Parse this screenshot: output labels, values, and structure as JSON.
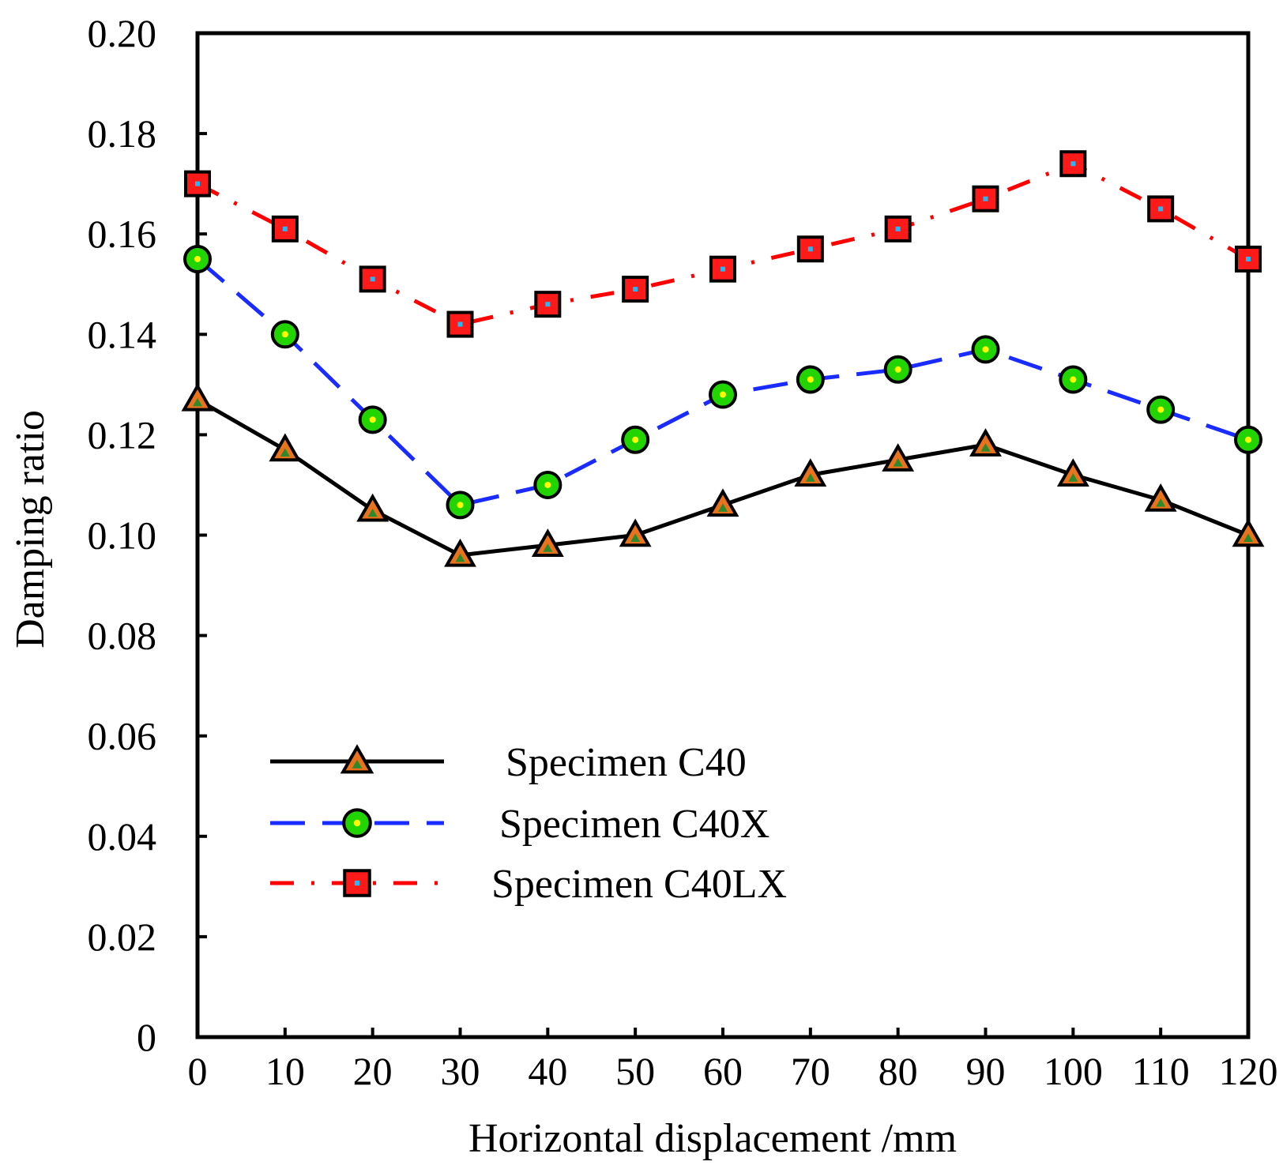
{
  "chart_data": {
    "type": "line",
    "title": "",
    "xlabel": "Horizontal displacement /mm",
    "ylabel": "Damping ratio",
    "xlim": [
      0,
      120
    ],
    "ylim": [
      0,
      0.2
    ],
    "x": [
      0,
      10,
      20,
      30,
      40,
      50,
      60,
      70,
      80,
      90,
      100,
      110,
      120
    ],
    "x_tick_labels": [
      "0",
      "10",
      "20",
      "30",
      "40",
      "50",
      "60",
      "70",
      "80",
      "90",
      "100",
      "110",
      "120"
    ],
    "y_ticks": [
      0,
      0.02,
      0.04,
      0.06,
      0.08,
      0.1,
      0.12,
      0.14,
      0.16,
      0.18,
      0.2
    ],
    "y_tick_labels": [
      "0",
      "0.02",
      "0.04",
      "0.06",
      "0.08",
      "0.10",
      "0.12",
      "0.14",
      "0.16",
      "0.18",
      "0.20"
    ],
    "grid": false,
    "legend_position": "bottom-left",
    "series": [
      {
        "name": "Specimen C40",
        "marker": "triangle",
        "line_style": "solid",
        "line_color": "#000000",
        "marker_fill": "#e8731c",
        "marker_inner": "#2c8a2c",
        "values": [
          0.127,
          0.117,
          0.105,
          0.096,
          0.098,
          0.1,
          0.106,
          0.112,
          0.115,
          0.118,
          0.112,
          0.107,
          0.1
        ]
      },
      {
        "name": "Specimen C40X",
        "marker": "circle",
        "line_style": "dashed",
        "line_color": "#1a2bff",
        "marker_fill": "#22d400",
        "marker_inner": "#ffff00",
        "values": [
          0.155,
          0.14,
          0.123,
          0.106,
          0.11,
          0.119,
          0.128,
          0.131,
          0.133,
          0.137,
          0.131,
          0.125,
          0.119
        ]
      },
      {
        "name": "Specimen C40LX",
        "marker": "square",
        "line_style": "dashdot",
        "line_color": "#ff0000",
        "marker_fill": "#ff1a1a",
        "marker_inner": "#29b6f6",
        "values": [
          0.17,
          0.161,
          0.151,
          0.142,
          0.146,
          0.149,
          0.153,
          0.157,
          0.161,
          0.167,
          0.174,
          0.165,
          0.155
        ]
      }
    ]
  }
}
